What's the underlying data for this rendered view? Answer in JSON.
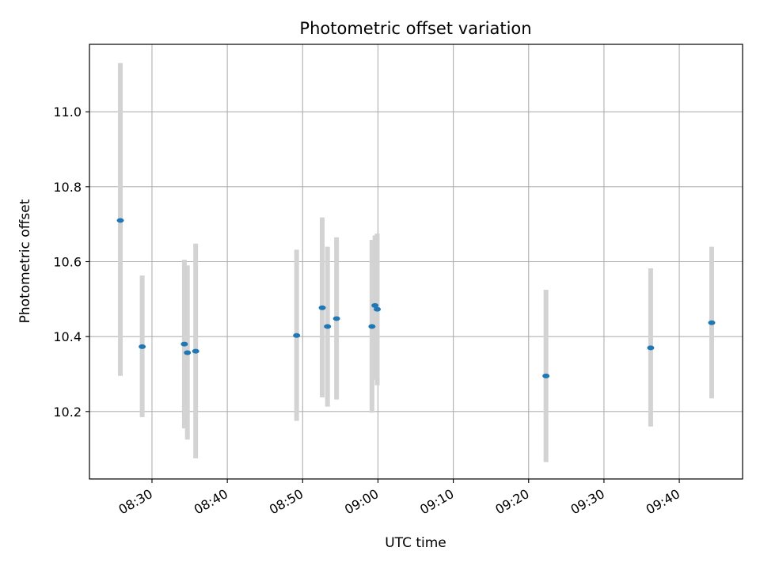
{
  "chart_data": {
    "type": "scatter",
    "title": "Photometric offset variation",
    "xlabel": "UTC time",
    "ylabel": "Photometric offset",
    "xlim": [
      "08:21.7",
      "09:48.4"
    ],
    "ylim": [
      10.02,
      11.18
    ],
    "x_ticks": [
      "08:30",
      "08:40",
      "08:50",
      "09:00",
      "09:10",
      "09:20",
      "09:30",
      "09:40"
    ],
    "y_ticks": [
      "10.2",
      "10.4",
      "10.6",
      "10.8",
      "11.0"
    ],
    "grid": true,
    "colors": {
      "point": "#1f77b4",
      "errorbar": "#d3d3d3",
      "grid": "#b0b0b0"
    },
    "points": [
      {
        "time": "08:25.8",
        "offset": 10.71,
        "low": 10.295,
        "high": 11.13
      },
      {
        "time": "08:28.7",
        "offset": 10.373,
        "low": 10.185,
        "high": 10.563
      },
      {
        "time": "08:34.3",
        "offset": 10.38,
        "low": 10.155,
        "high": 10.605
      },
      {
        "time": "08:34.7",
        "offset": 10.357,
        "low": 10.125,
        "high": 10.59
      },
      {
        "time": "08:35.8",
        "offset": 10.361,
        "low": 10.075,
        "high": 10.648
      },
      {
        "time": "08:49.2",
        "offset": 10.403,
        "low": 10.175,
        "high": 10.632
      },
      {
        "time": "08:52.6",
        "offset": 10.477,
        "low": 10.238,
        "high": 10.718
      },
      {
        "time": "08:53.3",
        "offset": 10.427,
        "low": 10.213,
        "high": 10.64
      },
      {
        "time": "08:54.5",
        "offset": 10.448,
        "low": 10.232,
        "high": 10.665
      },
      {
        "time": "08:59.2",
        "offset": 10.427,
        "low": 10.197,
        "high": 10.658
      },
      {
        "time": "08:59.6",
        "offset": 10.483,
        "low": 10.285,
        "high": 10.67
      },
      {
        "time": "08:59.9",
        "offset": 10.473,
        "low": 10.27,
        "high": 10.675
      },
      {
        "time": "09:22.3",
        "offset": 10.295,
        "low": 10.065,
        "high": 10.525
      },
      {
        "time": "09:36.2",
        "offset": 10.37,
        "low": 10.16,
        "high": 10.582
      },
      {
        "time": "09:44.3",
        "offset": 10.437,
        "low": 10.235,
        "high": 10.64
      }
    ]
  }
}
